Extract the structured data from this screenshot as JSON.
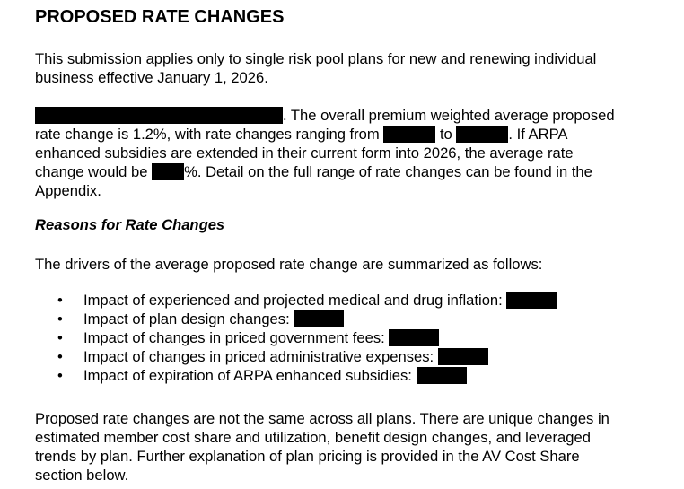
{
  "title": "PROPOSED RATE CHANGES",
  "intro": [
    "This submission applies only to single risk pool plans for new and renewing individual",
    "business effective January 1, 2026."
  ],
  "summary": {
    "l1": ". The overall premium weighted average proposed",
    "l2a": "rate change is 1.2%, with rate changes ranging from ",
    "l2b": " to ",
    "l2c": ". If ARPA",
    "l3": "enhanced subsidies are extended in their current form into 2026, the average rate",
    "l4a": "change would be ",
    "l4b": "%. Detail on the full range of rate changes can be found in the",
    "l5": "Appendix."
  },
  "reasons_heading": "Reasons for Rate Changes",
  "drivers_intro": "The drivers of the average proposed rate change are summarized as follows:",
  "bullet_glyph": "•",
  "drivers": [
    "Impact of experienced and projected medical and drug inflation: ",
    "Impact of plan design changes: ",
    "Impact of changes in priced government fees: ",
    "Impact of changes in priced administrative expenses: ",
    "Impact of expiration of ARPA enhanced subsidies: "
  ],
  "closing": [
    "Proposed rate changes are not the same across all plans. There are unique changes in",
    "estimated member cost share and utilization, benefit design changes, and leveraged",
    "trends by plan. Further explanation of plan pricing is provided in the AV Cost Share",
    "section below."
  ]
}
